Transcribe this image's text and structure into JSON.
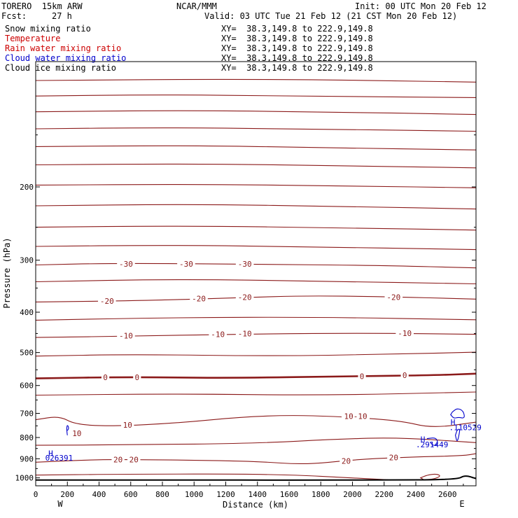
{
  "header": {
    "run": "TORERO  15km ARW",
    "org": "NCAR/MMM",
    "init": "Init: 00 UTC Mon 20 Feb 12",
    "fcst_label": "Fcst:",
    "fcst_value": "27 h",
    "valid": "Valid: 03 UTC Tue 21 Feb 12 (21 CST Mon 20 Feb 12)"
  },
  "fields": [
    {
      "name": "Snow mixing ratio",
      "color": "#000000",
      "xy": "XY=  38.3,149.8 to 222.9,149.8"
    },
    {
      "name": "Temperature",
      "color": "#cc0000",
      "xy": "XY=  38.3,149.8 to 222.9,149.8"
    },
    {
      "name": "Rain water mixing ratio",
      "color": "#cc0000",
      "xy": "XY=  38.3,149.8 to 222.9,149.8"
    },
    {
      "name": "Cloud water mixing ratio",
      "color": "#0000cc",
      "xy": "XY=  38.3,149.8 to 222.9,149.8"
    },
    {
      "name": "Cloud ice mixing ratio",
      "color": "#000000",
      "xy": "XY=  38.3,149.8 to 222.9,149.8"
    }
  ],
  "chart_data": {
    "type": "contour",
    "xlabel": "Distance (km)",
    "ylabel": "Pressure (hPa)",
    "xlim": [
      0,
      2780
    ],
    "ylim_hpa": [
      1045,
      100
    ],
    "yscale": "log",
    "x_ticks": [
      0,
      200,
      400,
      600,
      800,
      1000,
      1200,
      1400,
      1600,
      1800,
      2000,
      2200,
      2400,
      2600
    ],
    "y_ticks": [
      200,
      300,
      400,
      500,
      600,
      700,
      800,
      900,
      1000
    ],
    "x_end_labels": {
      "left": "W",
      "right": "E"
    },
    "colors": {
      "temperature": "#8b1a1a",
      "cloud_water": "#0000cc",
      "terrain": "#000000"
    },
    "isotherms": [
      {
        "level": null,
        "p": [
          [
            0,
            111
          ],
          [
            1400,
            110
          ],
          [
            2780,
            112
          ]
        ]
      },
      {
        "level": null,
        "p": [
          [
            0,
            121
          ],
          [
            800,
            120
          ],
          [
            1600,
            121
          ],
          [
            2780,
            122
          ]
        ]
      },
      {
        "level": null,
        "p": [
          [
            0,
            132
          ],
          [
            900,
            131
          ],
          [
            1800,
            132
          ],
          [
            2780,
            134
          ]
        ]
      },
      {
        "level": null,
        "p": [
          [
            0,
            145
          ],
          [
            800,
            144
          ],
          [
            1600,
            145
          ],
          [
            2780,
            147
          ]
        ]
      },
      {
        "level": null,
        "p": [
          [
            0,
            160
          ],
          [
            1000,
            159
          ],
          [
            1800,
            161
          ],
          [
            2780,
            163
          ]
        ]
      },
      {
        "level": null,
        "p": [
          [
            0,
            177
          ],
          [
            1000,
            176
          ],
          [
            2000,
            178
          ],
          [
            2780,
            180
          ]
        ]
      },
      {
        "level": null,
        "p": [
          [
            0,
            198
          ],
          [
            1000,
            197
          ],
          [
            2000,
            199
          ],
          [
            2780,
            201
          ]
        ]
      },
      {
        "level": null,
        "p": [
          [
            0,
            222
          ],
          [
            1000,
            220
          ],
          [
            2000,
            223
          ],
          [
            2780,
            226
          ]
        ]
      },
      {
        "level": null,
        "p": [
          [
            0,
            250
          ],
          [
            900,
            248
          ],
          [
            2000,
            251
          ],
          [
            2780,
            254
          ]
        ]
      },
      {
        "level": null,
        "p": [
          [
            0,
            278
          ],
          [
            800,
            276
          ],
          [
            1600,
            278
          ],
          [
            2780,
            283
          ]
        ]
      },
      {
        "level": -30,
        "p": [
          [
            0,
            308
          ],
          [
            500,
            305
          ],
          [
            1500,
            307
          ],
          [
            2200,
            309
          ],
          [
            2780,
            313
          ]
        ]
      },
      {
        "level": null,
        "p": [
          [
            0,
            338
          ],
          [
            900,
            333
          ],
          [
            1800,
            337
          ],
          [
            2780,
            342
          ]
        ]
      },
      {
        "level": -20,
        "p": [
          [
            0,
            378
          ],
          [
            700,
            375
          ],
          [
            1300,
            369
          ],
          [
            1700,
            365
          ],
          [
            2200,
            367
          ],
          [
            2780,
            372
          ]
        ]
      },
      {
        "level": null,
        "p": [
          [
            0,
            418
          ],
          [
            900,
            412
          ],
          [
            1800,
            411
          ],
          [
            2780,
            417
          ]
        ]
      },
      {
        "level": -10,
        "p": [
          [
            0,
            460
          ],
          [
            700,
            456
          ],
          [
            1400,
            451
          ],
          [
            2100,
            449
          ],
          [
            2780,
            452
          ]
        ]
      },
      {
        "level": null,
        "p": [
          [
            0,
            510
          ],
          [
            600,
            505
          ],
          [
            1500,
            510
          ],
          [
            2200,
            505
          ],
          [
            2780,
            499
          ]
        ]
      },
      {
        "level": 0,
        "bold": true,
        "p": [
          [
            0,
            577
          ],
          [
            600,
            572
          ],
          [
            1200,
            576
          ],
          [
            2000,
            570
          ],
          [
            2500,
            567
          ],
          [
            2780,
            562
          ]
        ]
      },
      {
        "level": null,
        "p": [
          [
            0,
            633
          ],
          [
            900,
            628
          ],
          [
            1800,
            634
          ],
          [
            2780,
            622
          ]
        ]
      },
      {
        "level": 10,
        "p": [
          [
            0,
            725
          ],
          [
            150,
            710
          ],
          [
            250,
            745
          ],
          [
            500,
            752
          ],
          [
            900,
            738
          ],
          [
            1300,
            714
          ],
          [
            1600,
            707
          ],
          [
            1900,
            712
          ],
          [
            2300,
            728
          ],
          [
            2500,
            760
          ],
          [
            2780,
            735
          ]
        ]
      },
      {
        "level": null,
        "p": [
          [
            0,
            835
          ],
          [
            600,
            833
          ],
          [
            1400,
            826
          ],
          [
            1900,
            807
          ],
          [
            2300,
            800
          ],
          [
            2780,
            823
          ]
        ]
      },
      {
        "level": 20,
        "p": [
          [
            0,
            917
          ],
          [
            400,
            903
          ],
          [
            700,
            905
          ],
          [
            1000,
            907
          ],
          [
            1400,
            913
          ],
          [
            1700,
            930
          ],
          [
            2000,
            905
          ],
          [
            2300,
            893
          ],
          [
            2700,
            885
          ],
          [
            2780,
            875
          ]
        ]
      },
      {
        "level": null,
        "p": [
          [
            0,
            985
          ],
          [
            500,
            980
          ],
          [
            1500,
            978
          ],
          [
            2100,
            1005
          ],
          [
            2250,
            1012
          ]
        ]
      }
    ],
    "isotherm_labels": [
      {
        "text": "-30",
        "x": 570,
        "p": 306
      },
      {
        "text": "-30",
        "x": 950,
        "p": 306
      },
      {
        "text": "-30",
        "x": 1320,
        "p": 306
      },
      {
        "text": "-20",
        "x": 450,
        "p": 376
      },
      {
        "text": "-20",
        "x": 1030,
        "p": 371
      },
      {
        "text": "-20",
        "x": 1320,
        "p": 368
      },
      {
        "text": "-20",
        "x": 2260,
        "p": 368
      },
      {
        "text": "-10",
        "x": 570,
        "p": 455
      },
      {
        "text": "-10",
        "x": 1150,
        "p": 452
      },
      {
        "text": "-10",
        "x": 1320,
        "p": 450
      },
      {
        "text": "-10",
        "x": 2330,
        "p": 449
      },
      {
        "text": "0",
        "x": 440,
        "p": 573
      },
      {
        "text": "0",
        "x": 640,
        "p": 573
      },
      {
        "text": "0",
        "x": 2060,
        "p": 570
      },
      {
        "text": "0",
        "x": 2330,
        "p": 567
      },
      {
        "text": "10",
        "x": 580,
        "p": 746
      },
      {
        "text": "10-10",
        "x": 2020,
        "p": 711
      },
      {
        "text": "10",
        "x": 260,
        "p": 782
      },
      {
        "text": "20",
        "x": 520,
        "p": 904
      },
      {
        "text": "20",
        "x": 620,
        "p": 904
      },
      {
        "text": "20",
        "x": 1960,
        "p": 910
      },
      {
        "text": "20",
        "x": 2260,
        "p": 893
      }
    ],
    "cloud_water": [
      {
        "p": [
          [
            200,
            770
          ],
          [
            210,
            760
          ],
          [
            200,
            745
          ],
          [
            195,
            760
          ],
          [
            198,
            780
          ],
          [
            200,
            790
          ]
        ],
        "closed": false
      },
      {
        "p": [
          [
            2630,
            695
          ],
          [
            2660,
            680
          ],
          [
            2700,
            690
          ],
          [
            2710,
            720
          ],
          [
            2670,
            715
          ],
          [
            2640,
            720
          ],
          [
            2620,
            705
          ]
        ],
        "closed": true
      },
      {
        "p": [
          [
            2660,
            770
          ],
          [
            2680,
            760
          ],
          [
            2670,
            800
          ],
          [
            2660,
            820
          ],
          [
            2650,
            790
          ]
        ],
        "closed": true
      },
      {
        "p": [
          [
            2470,
            805
          ],
          [
            2530,
            800
          ],
          [
            2540,
            830
          ],
          [
            2510,
            838
          ],
          [
            2490,
            820
          ]
        ],
        "closed": false
      }
    ],
    "highs": [
      {
        "text": "H",
        "x": 80,
        "p": 872
      },
      {
        "text": "026391",
        "x": 60,
        "p": 895
      },
      {
        "text": "H",
        "x": 2430,
        "p": 808
      },
      {
        "text": ".291449",
        "x": 2400,
        "p": 831
      },
      {
        "text": "H",
        "x": 2620,
        "p": 735
      },
      {
        "text": ".110529",
        "x": 2610,
        "p": 756
      }
    ],
    "rain_water": [
      {
        "p": [
          [
            2430,
            1000
          ],
          [
            2470,
            985
          ],
          [
            2530,
            978
          ],
          [
            2560,
            990
          ],
          [
            2510,
            1008
          ],
          [
            2450,
            1010
          ]
        ],
        "closed": true
      }
    ],
    "terrain": {
      "p": [
        [
          0,
          1012
        ],
        [
          400,
          1013
        ],
        [
          1000,
          1012
        ],
        [
          1600,
          1013
        ],
        [
          2200,
          1012
        ],
        [
          2660,
          1010
        ],
        [
          2710,
          985
        ],
        [
          2780,
          1004
        ]
      ]
    }
  }
}
